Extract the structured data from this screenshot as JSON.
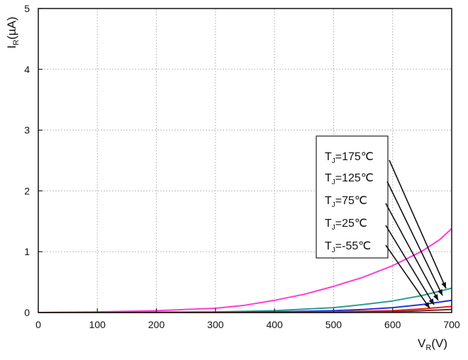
{
  "chart_data": {
    "type": "line",
    "title": "",
    "xlabel_main": "V",
    "xlabel_sub": "R",
    "xlabel_tail": "(V)",
    "ylabel_main": "I",
    "ylabel_sub": "R",
    "ylabel_tail": "(µA)",
    "xlim": [
      0,
      700
    ],
    "ylim": [
      0,
      5
    ],
    "xticks": [
      "0",
      "100",
      "200",
      "300",
      "400",
      "500",
      "600",
      "700"
    ],
    "yticks": [
      "0",
      "1",
      "2",
      "3",
      "4",
      "5"
    ],
    "grid": true,
    "legend_position": "right",
    "series": [
      {
        "name": "T_J=175℃",
        "label_main": "T",
        "label_sub": "J",
        "label_tail": "=175℃",
        "color": "#ff3bd6",
        "x": [
          0,
          100,
          200,
          300,
          350,
          400,
          450,
          500,
          550,
          600,
          650,
          680,
          700
        ],
        "y": [
          0,
          0.01,
          0.03,
          0.07,
          0.12,
          0.2,
          0.3,
          0.43,
          0.58,
          0.77,
          1.01,
          1.2,
          1.38
        ]
      },
      {
        "name": "T_J=125℃",
        "label_main": "T",
        "label_sub": "J",
        "label_tail": "=125℃",
        "color": "#2f9c8f",
        "x": [
          0,
          300,
          400,
          500,
          550,
          600,
          650,
          700
        ],
        "y": [
          0,
          0.01,
          0.03,
          0.08,
          0.13,
          0.19,
          0.28,
          0.4
        ]
      },
      {
        "name": "T_J=75℃",
        "label_main": "T",
        "label_sub": "J",
        "label_tail": "=75℃",
        "color": "#2233dd",
        "x": [
          0,
          300,
          400,
          500,
          550,
          600,
          650,
          700
        ],
        "y": [
          0,
          0.0,
          0.01,
          0.03,
          0.05,
          0.08,
          0.13,
          0.2
        ]
      },
      {
        "name": "T_J=25℃",
        "label_main": "T",
        "label_sub": "J",
        "label_tail": "=25℃",
        "color": "#e02020",
        "x": [
          0,
          400,
          500,
          600,
          650,
          700
        ],
        "y": [
          0,
          0.0,
          0.01,
          0.03,
          0.06,
          0.1
        ]
      },
      {
        "name": "T_J=-55℃",
        "label_main": "T",
        "label_sub": "J",
        "label_tail": "=-55℃",
        "color": "#8a1a1a",
        "x": [
          0,
          400,
          500,
          600,
          650,
          700
        ],
        "y": [
          0,
          0.0,
          0.0,
          0.01,
          0.03,
          0.05
        ]
      }
    ]
  }
}
